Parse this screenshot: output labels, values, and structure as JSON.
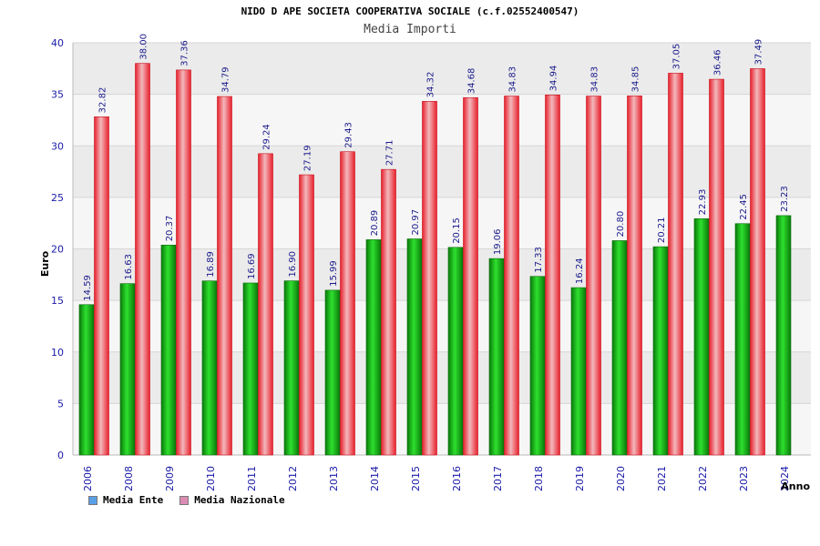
{
  "title": "NIDO D APE SOCIETA COOPERATIVA SOCIALE (c.f.02552400547)",
  "subtitle": "Media Importi",
  "colors": {
    "ente": "#18b418",
    "nazionale": "#e8202c",
    "legend_ente": "#5aa0e6",
    "legend_nazionale": "#dc8cb4",
    "axis_text": "#1a1aa8",
    "label_text": "#1a1a8c"
  },
  "chart_data": {
    "type": "bar",
    "title": "NIDO D APE SOCIETA COOPERATIVA SOCIALE (c.f.02552400547)",
    "subtitle": "Media Importi",
    "xlabel": "Anno",
    "ylabel": "Euro",
    "ylim": [
      0,
      40
    ],
    "yticks": [
      0,
      5,
      10,
      15,
      20,
      25,
      30,
      35,
      40
    ],
    "grid": true,
    "legend_position": "bottom-left",
    "categories": [
      "2006",
      "2008",
      "2009",
      "2010",
      "2011",
      "2012",
      "2013",
      "2014",
      "2015",
      "2016",
      "2017",
      "2018",
      "2019",
      "2020",
      "2021",
      "2022",
      "2023",
      "2024"
    ],
    "series": [
      {
        "name": "Media Ente",
        "values": [
          14.59,
          16.63,
          20.37,
          16.89,
          16.69,
          16.9,
          15.99,
          20.89,
          20.97,
          20.15,
          19.06,
          17.33,
          16.24,
          20.8,
          20.21,
          22.93,
          22.45,
          23.23
        ],
        "labels": [
          "14.59",
          "16.63",
          "20.37",
          "16.89",
          "16.69",
          "16.90",
          "15.99",
          "20.89",
          "20.97",
          "20.15",
          "19.06",
          "17.33",
          "16.24",
          "20.80",
          "20.21",
          "22.93",
          "22.45",
          "23.23"
        ]
      },
      {
        "name": "Media Nazionale",
        "values": [
          32.82,
          38.0,
          37.36,
          34.79,
          29.24,
          27.19,
          29.43,
          27.71,
          34.32,
          34.68,
          34.83,
          34.94,
          34.83,
          34.85,
          37.05,
          36.46,
          37.49,
          null
        ],
        "labels": [
          "32.82",
          "38.00",
          "37.36",
          "34.79",
          "29.24",
          "27.19",
          "29.43",
          "27.71",
          "34.32",
          "34.68",
          "34.83",
          "34.94",
          "34.83",
          "34.85",
          "37.05",
          "36.46",
          "37.49",
          ""
        ]
      }
    ]
  }
}
